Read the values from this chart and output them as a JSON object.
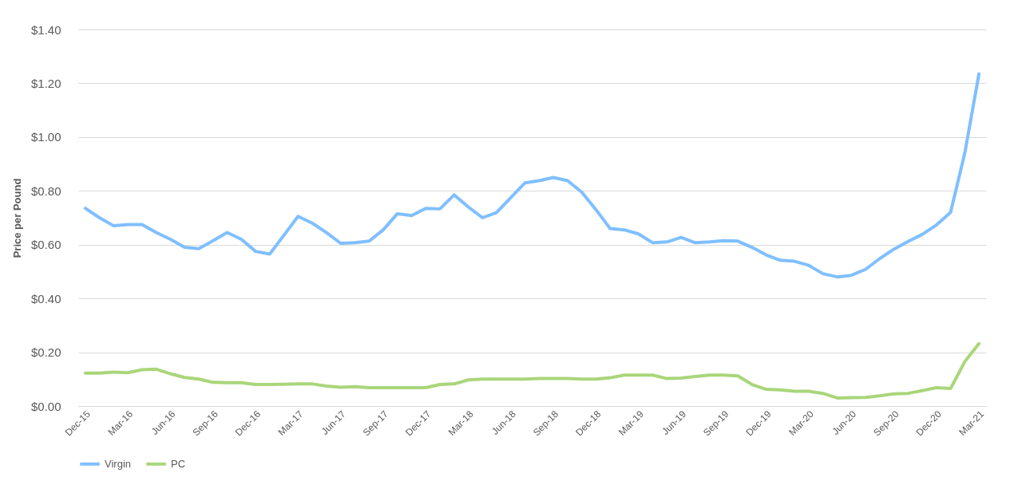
{
  "chart_data": {
    "type": "line",
    "ylabel": "Price per Pound",
    "categories": [
      "Dec-15",
      null,
      null,
      "Mar-16",
      null,
      null,
      "Jun-16",
      null,
      null,
      "Sep-16",
      null,
      null,
      "Dec-16",
      null,
      null,
      "Mar-17",
      null,
      null,
      "Jun-17",
      null,
      null,
      "Sep-17",
      null,
      null,
      "Dec-17",
      null,
      null,
      "Mar-18",
      null,
      null,
      "Jun-18",
      null,
      null,
      "Sep-18",
      null,
      null,
      "Dec-18",
      null,
      null,
      "Mar-19",
      null,
      null,
      "Jun-19",
      null,
      null,
      "Sep-19",
      null,
      null,
      "Dec-19",
      null,
      null,
      "Mar-20",
      null,
      null,
      "Jun-20",
      null,
      null,
      "Sep-20",
      null,
      null,
      "Dec-20",
      null,
      null,
      "Mar-21"
    ],
    "series": [
      {
        "name": "Virgin",
        "color": "#7fbfff",
        "values": [
          0.735,
          0.7,
          0.67,
          0.675,
          0.675,
          0.645,
          0.62,
          0.59,
          0.585,
          0.615,
          0.645,
          0.62,
          0.575,
          0.565,
          0.635,
          0.705,
          0.68,
          0.645,
          0.605,
          0.607,
          0.613,
          0.655,
          0.715,
          0.708,
          0.735,
          0.733,
          0.785,
          0.74,
          0.7,
          0.72,
          0.775,
          0.83,
          0.838,
          0.85,
          0.838,
          0.795,
          0.73,
          0.66,
          0.655,
          0.64,
          0.607,
          0.61,
          0.627,
          0.607,
          0.61,
          0.615,
          0.613,
          0.59,
          0.562,
          0.542,
          0.538,
          0.523,
          0.492,
          0.48,
          0.486,
          0.508,
          0.548,
          0.583,
          0.612,
          0.638,
          0.673,
          0.72,
          0.94,
          1.235
        ]
      },
      {
        "name": "PC",
        "color": "#a9d67a",
        "values": [
          0.122,
          0.122,
          0.126,
          0.124,
          0.135,
          0.137,
          0.12,
          0.106,
          0.1,
          0.088,
          0.087,
          0.087,
          0.08,
          0.08,
          0.081,
          0.082,
          0.082,
          0.074,
          0.07,
          0.072,
          0.068,
          0.068,
          0.068,
          0.068,
          0.068,
          0.08,
          0.082,
          0.097,
          0.1,
          0.1,
          0.1,
          0.1,
          0.102,
          0.102,
          0.102,
          0.1,
          0.1,
          0.105,
          0.115,
          0.115,
          0.115,
          0.102,
          0.104,
          0.11,
          0.115,
          0.115,
          0.112,
          0.08,
          0.062,
          0.06,
          0.055,
          0.055,
          0.047,
          0.03,
          0.031,
          0.032,
          0.038,
          0.045,
          0.047,
          0.057,
          0.068,
          0.065,
          0.165,
          0.232
        ]
      }
    ],
    "ylim": [
      0,
      1.4
    ],
    "yticks": [
      {
        "value": 0,
        "label": "$0.00"
      },
      {
        "value": 0.2,
        "label": "$0.20"
      },
      {
        "value": 0.4,
        "label": "$0.40"
      },
      {
        "value": 0.6,
        "label": "$0.60"
      },
      {
        "value": 0.8,
        "label": "$0.80"
      },
      {
        "value": 1.0,
        "label": "$1.00"
      },
      {
        "value": 1.2,
        "label": "$1.20"
      },
      {
        "value": 1.4,
        "label": "$1.40"
      }
    ],
    "grid": "y",
    "legend": "bottom",
    "marker": "none",
    "line_style": "solid"
  }
}
